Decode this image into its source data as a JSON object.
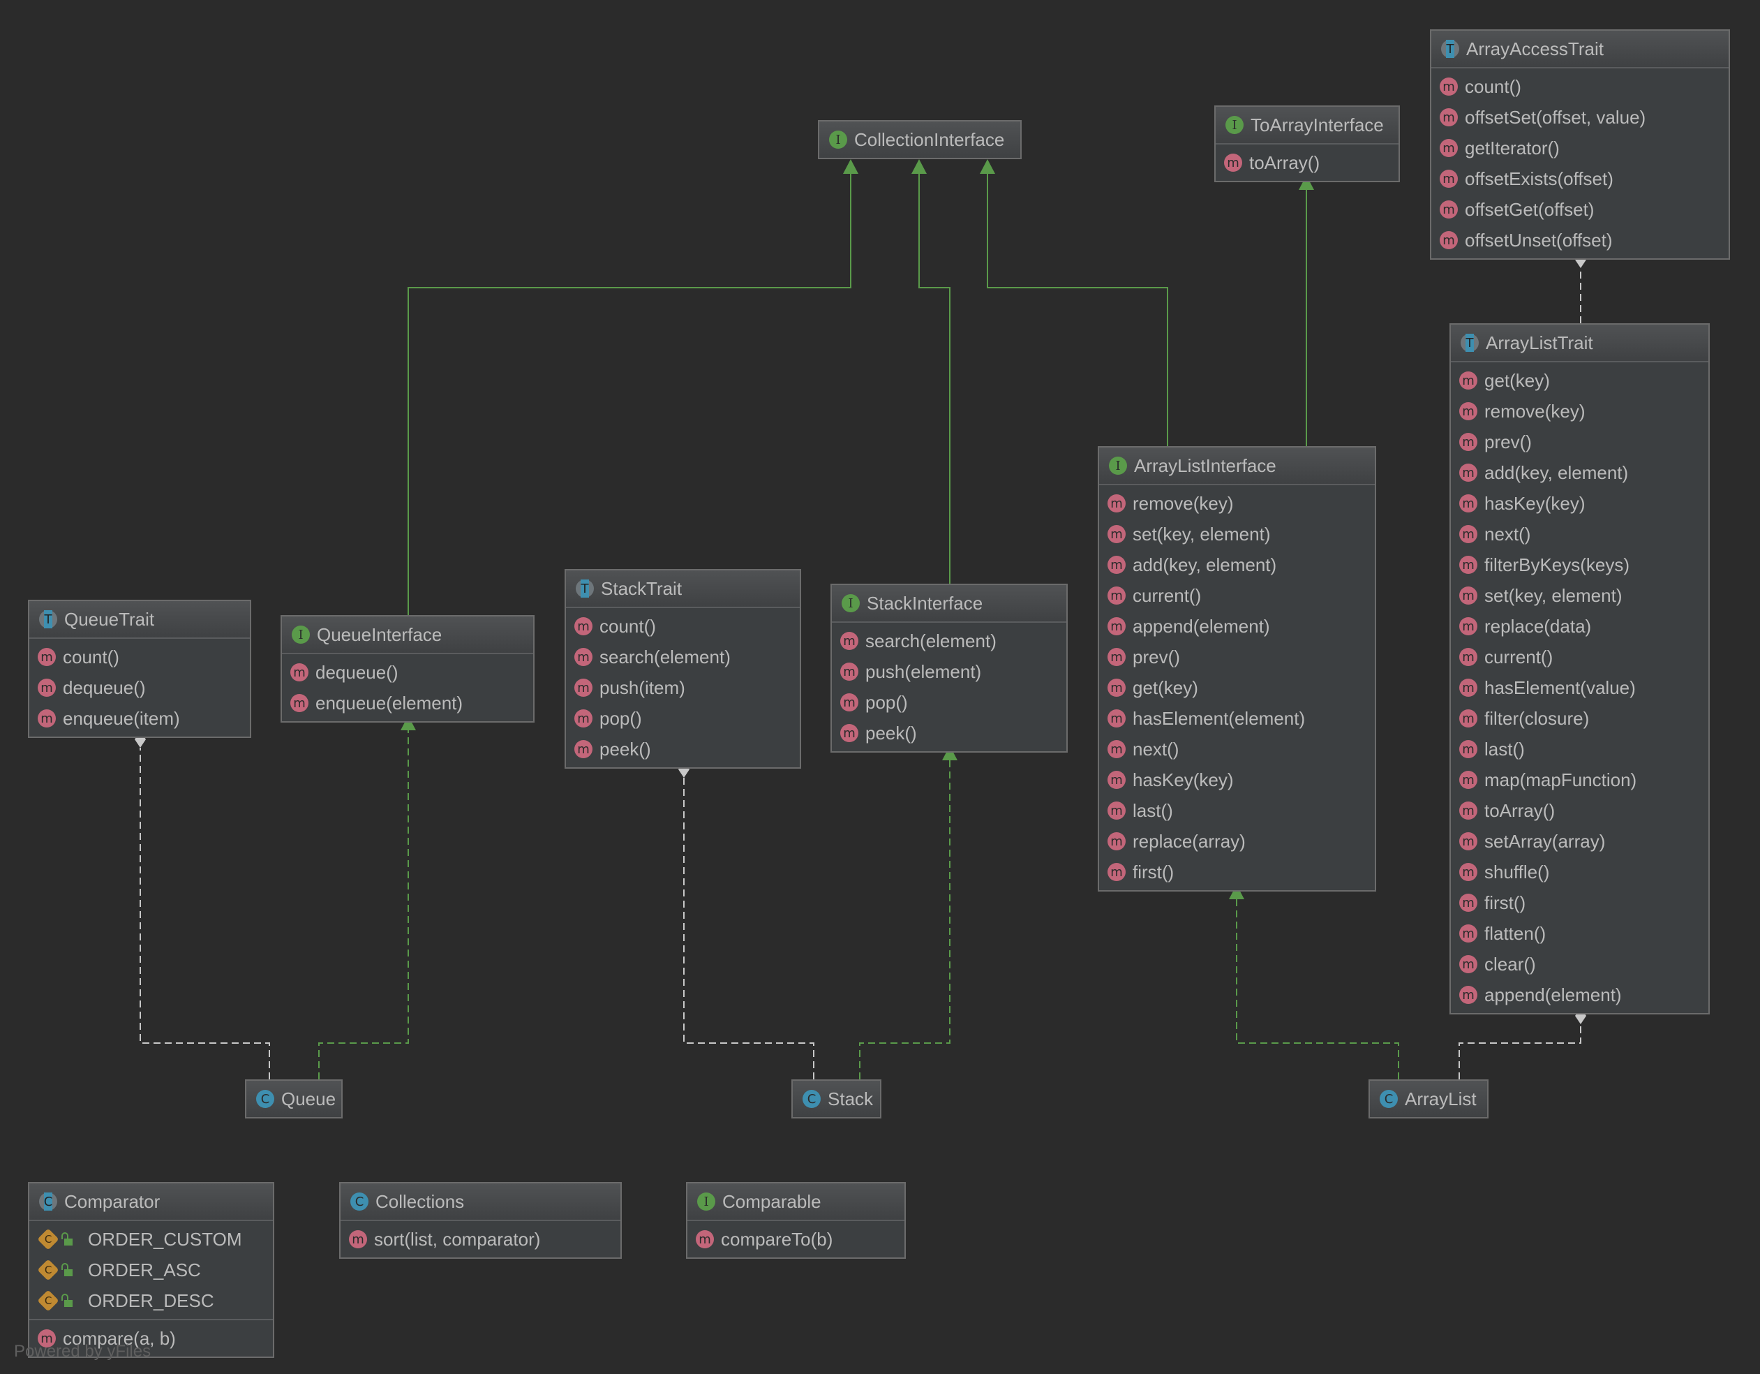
{
  "colors": {
    "background": "#2b2b2b",
    "inheritance": "#5a9a4a",
    "trait_use": "#c8c8c8",
    "method": "#c3667a",
    "interface": "#5a9a4a",
    "class": "#3e8fb0",
    "constant": "#c08a32"
  },
  "boxes": [
    {
      "id": "CollectionInterface",
      "title": "CollectionInterface",
      "kind": "interface",
      "fields": [],
      "methods": []
    },
    {
      "id": "ToArrayInterface",
      "title": "ToArrayInterface",
      "kind": "interface",
      "fields": [],
      "methods": [
        "toArray()"
      ]
    },
    {
      "id": "ArrayAccessTrait",
      "title": "ArrayAccessTrait",
      "kind": "trait",
      "fields": [],
      "methods": [
        "count()",
        "offsetSet(offset, value)",
        "getIterator()",
        "offsetExists(offset)",
        "offsetGet(offset)",
        "offsetUnset(offset)"
      ]
    },
    {
      "id": "ArrayListTrait",
      "title": "ArrayListTrait",
      "kind": "trait",
      "fields": [],
      "methods": [
        "get(key)",
        "remove(key)",
        "prev()",
        "add(key, element)",
        "hasKey(key)",
        "next()",
        "filterByKeys(keys)",
        "set(key, element)",
        "replace(data)",
        "current()",
        "hasElement(value)",
        "filter(closure)",
        "last()",
        "map(mapFunction)",
        "toArray()",
        "setArray(array)",
        "shuffle()",
        "first()",
        "flatten()",
        "clear()",
        "append(element)"
      ]
    },
    {
      "id": "ArrayListInterface",
      "title": "ArrayListInterface",
      "kind": "interface",
      "fields": [],
      "methods": [
        "remove(key)",
        "set(key, element)",
        "add(key, element)",
        "current()",
        "append(element)",
        "prev()",
        "get(key)",
        "hasElement(element)",
        "next()",
        "hasKey(key)",
        "last()",
        "replace(array)",
        "first()"
      ]
    },
    {
      "id": "QueueTrait",
      "title": "QueueTrait",
      "kind": "trait",
      "fields": [],
      "methods": [
        "count()",
        "dequeue()",
        "enqueue(item)"
      ]
    },
    {
      "id": "QueueInterface",
      "title": "QueueInterface",
      "kind": "interface",
      "fields": [],
      "methods": [
        "dequeue()",
        "enqueue(element)"
      ]
    },
    {
      "id": "StackTrait",
      "title": "StackTrait",
      "kind": "trait",
      "fields": [],
      "methods": [
        "count()",
        "search(element)",
        "push(item)",
        "pop()",
        "peek()"
      ]
    },
    {
      "id": "StackInterface",
      "title": "StackInterface",
      "kind": "interface",
      "fields": [],
      "methods": [
        "search(element)",
        "push(element)",
        "pop()",
        "peek()"
      ]
    },
    {
      "id": "Queue",
      "title": "Queue",
      "kind": "class",
      "fields": [],
      "methods": []
    },
    {
      "id": "Stack",
      "title": "Stack",
      "kind": "class",
      "fields": [],
      "methods": []
    },
    {
      "id": "ArrayList",
      "title": "ArrayList",
      "kind": "class",
      "fields": [],
      "methods": []
    },
    {
      "id": "Comparator",
      "title": "Comparator",
      "kind": "abstract-class",
      "fields": [
        "ORDER_CUSTOM",
        "ORDER_ASC",
        "ORDER_DESC"
      ],
      "methods": [
        "compare(a, b)"
      ]
    },
    {
      "id": "Collections",
      "title": "Collections",
      "kind": "class",
      "fields": [],
      "methods": [
        "sort(list, comparator)"
      ]
    },
    {
      "id": "Comparable",
      "title": "Comparable",
      "kind": "interface",
      "fields": [],
      "methods": [
        "compareTo(b)"
      ]
    }
  ],
  "relations": [
    {
      "from": "QueueInterface",
      "to": "CollectionInterface",
      "type": "extends"
    },
    {
      "from": "StackInterface",
      "to": "CollectionInterface",
      "type": "extends"
    },
    {
      "from": "ArrayListInterface",
      "to": "CollectionInterface",
      "type": "extends"
    },
    {
      "from": "ArrayListInterface",
      "to": "ToArrayInterface",
      "type": "extends"
    },
    {
      "from": "ArrayListTrait",
      "to": "ArrayAccessTrait",
      "type": "uses"
    },
    {
      "from": "Queue",
      "to": "QueueTrait",
      "type": "uses"
    },
    {
      "from": "Queue",
      "to": "QueueInterface",
      "type": "implements"
    },
    {
      "from": "Stack",
      "to": "StackTrait",
      "type": "uses"
    },
    {
      "from": "Stack",
      "to": "StackInterface",
      "type": "implements"
    },
    {
      "from": "ArrayList",
      "to": "ArrayListTrait",
      "type": "uses"
    },
    {
      "from": "ArrayList",
      "to": "ArrayListInterface",
      "type": "implements"
    }
  ],
  "footer": "Powered by yFiles"
}
